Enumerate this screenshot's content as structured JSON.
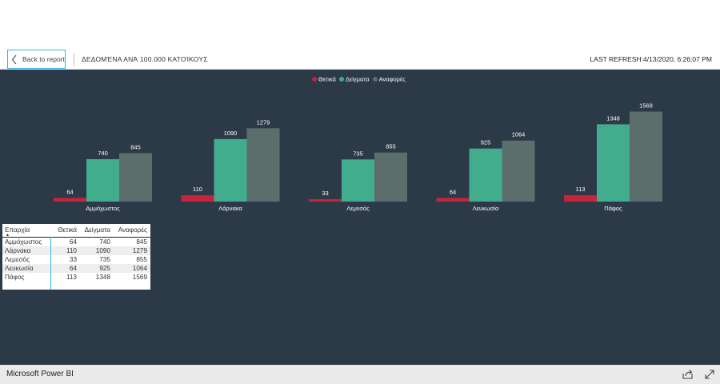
{
  "header": {
    "back_label": "Back to report",
    "page_title": "ΔΕΔΟΜΈΝΑ ΑΝΆ 100.000 ΚΑΤΟΊΚΟΥΣ",
    "refresh_text": "LAST REFRESH:4/13/2020, 6:26:07 PM"
  },
  "legend": [
    {
      "label": "Θετικά",
      "color": "#c4253c"
    },
    {
      "label": "Δείγματα",
      "color": "#41ad8c"
    },
    {
      "label": "Αναφορές",
      "color": "#5c6e6b"
    }
  ],
  "chart_data": {
    "type": "bar",
    "categories": [
      "Αμμόχωστος",
      "Λάρνακα",
      "Λεμεσός",
      "Λευκωσία",
      "Πάφος"
    ],
    "series": [
      {
        "name": "Θετικά",
        "values": [
          64,
          110,
          33,
          64,
          113
        ],
        "color": "#c4253c"
      },
      {
        "name": "Δείγματα",
        "values": [
          740,
          1090,
          735,
          925,
          1348
        ],
        "color": "#41ad8c"
      },
      {
        "name": "Αναφορές",
        "values": [
          845,
          1279,
          855,
          1064,
          1569
        ],
        "color": "#5c6e6b"
      }
    ],
    "legend_position": "top-center",
    "grid": false
  },
  "table": {
    "headers": [
      "Επαρχία",
      "Θετικά",
      "Δείγματα",
      "Αναφορές"
    ],
    "rows": [
      [
        "Αμμόχωστος",
        "64",
        "740",
        "845"
      ],
      [
        "Λάρνακα",
        "110",
        "1090",
        "1279"
      ],
      [
        "Λεμεσός",
        "33",
        "735",
        "855"
      ],
      [
        "Λευκωσία",
        "64",
        "925",
        "1064"
      ],
      [
        "Πάφος",
        "113",
        "1348",
        "1569"
      ]
    ]
  },
  "footer": {
    "brand": "Microsoft Power BI",
    "share_icon": "share-icon",
    "expand_icon": "expand-icon"
  }
}
